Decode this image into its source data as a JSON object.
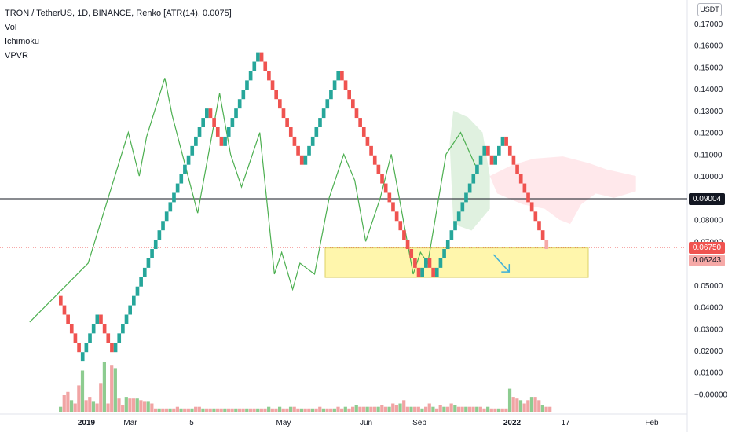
{
  "header": {
    "title": "TRON / TetherUS, 1D, BINANCE, Renko [ATR(14), 0.0075]",
    "indicators": [
      "Vol",
      "Ichimoku",
      "VPVR"
    ],
    "currency": "USDT"
  },
  "colors": {
    "up": "#26a69a",
    "down": "#ef5350",
    "ichimoku_line": "#4caf50",
    "volume_up": "#81c784",
    "volume_down": "#ef9a9a",
    "support_zone": "#fff176",
    "arrow": "#3fb0d8",
    "cloud_bull": "#a5d6a7",
    "cloud_bear": "#ffcdd2"
  },
  "price_labels": {
    "current": "0.09004",
    "close": "0.06750",
    "open": "0.06243"
  },
  "chart_data": {
    "type": "renko",
    "box_size": 0.0075,
    "y_axis_ticks": [
      "0.17000",
      "0.16000",
      "0.15000",
      "0.14000",
      "0.13000",
      "0.12000",
      "0.11000",
      "0.10000",
      "0.09000",
      "0.08000",
      "0.07000",
      "0.06000",
      "0.05000",
      "0.04000",
      "0.03000",
      "0.02000",
      "0.01000",
      "−0.00000"
    ],
    "x_axis_ticks": [
      "2019",
      "Mar",
      "5",
      "May",
      "Jun",
      "Sep",
      "2022",
      "17",
      "Feb"
    ],
    "ylim": [
      -0.002,
      0.175
    ],
    "bricks": [
      [
        "down",
        0.045
      ],
      [
        "down",
        0.0407
      ],
      [
        "down",
        0.0364
      ],
      [
        "down",
        0.0321
      ],
      [
        "down",
        0.0278
      ],
      [
        "down",
        0.0235
      ],
      [
        "up",
        0.0192
      ],
      [
        "up",
        0.0235
      ],
      [
        "up",
        0.0278
      ],
      [
        "up",
        0.0321
      ],
      [
        "up",
        0.0364
      ],
      [
        "down",
        0.0364
      ],
      [
        "down",
        0.0321
      ],
      [
        "down",
        0.0278
      ],
      [
        "down",
        0.0235
      ],
      [
        "up",
        0.0235
      ],
      [
        "up",
        0.0278
      ],
      [
        "up",
        0.0321
      ],
      [
        "up",
        0.0364
      ],
      [
        "up",
        0.0407
      ],
      [
        "up",
        0.045
      ],
      [
        "up",
        0.0493
      ],
      [
        "up",
        0.0536
      ],
      [
        "up",
        0.0579
      ],
      [
        "up",
        0.0622
      ],
      [
        "up",
        0.0665
      ],
      [
        "up",
        0.0708
      ],
      [
        "up",
        0.0751
      ],
      [
        "up",
        0.0794
      ],
      [
        "up",
        0.0837
      ],
      [
        "up",
        0.088
      ],
      [
        "up",
        0.0923
      ],
      [
        "up",
        0.0966
      ],
      [
        "up",
        0.1009
      ],
      [
        "up",
        0.1052
      ],
      [
        "up",
        0.1095
      ],
      [
        "up",
        0.1138
      ],
      [
        "up",
        0.1181
      ],
      [
        "up",
        0.1224
      ],
      [
        "up",
        0.1267
      ],
      [
        "up",
        0.131
      ],
      [
        "down",
        0.131
      ],
      [
        "down",
        0.1267
      ],
      [
        "down",
        0.1224
      ],
      [
        "down",
        0.1181
      ],
      [
        "up",
        0.1181
      ],
      [
        "up",
        0.1224
      ],
      [
        "up",
        0.1267
      ],
      [
        "up",
        0.131
      ],
      [
        "up",
        0.1353
      ],
      [
        "up",
        0.1396
      ],
      [
        "up",
        0.1439
      ],
      [
        "up",
        0.1482
      ],
      [
        "up",
        0.1525
      ],
      [
        "up",
        0.1568
      ],
      [
        "down",
        0.1568
      ],
      [
        "down",
        0.1525
      ],
      [
        "down",
        0.1482
      ],
      [
        "down",
        0.1439
      ],
      [
        "down",
        0.1396
      ],
      [
        "down",
        0.1353
      ],
      [
        "down",
        0.131
      ],
      [
        "down",
        0.1267
      ],
      [
        "down",
        0.1224
      ],
      [
        "down",
        0.1181
      ],
      [
        "down",
        0.1138
      ],
      [
        "down",
        0.1095
      ],
      [
        "up",
        0.1095
      ],
      [
        "up",
        0.1138
      ],
      [
        "up",
        0.1181
      ],
      [
        "up",
        0.1224
      ],
      [
        "up",
        0.1267
      ],
      [
        "up",
        0.131
      ],
      [
        "up",
        0.1353
      ],
      [
        "up",
        0.1396
      ],
      [
        "up",
        0.1439
      ],
      [
        "up",
        0.1482
      ],
      [
        "down",
        0.1482
      ],
      [
        "down",
        0.1439
      ],
      [
        "down",
        0.1396
      ],
      [
        "down",
        0.1353
      ],
      [
        "down",
        0.131
      ],
      [
        "down",
        0.1267
      ],
      [
        "down",
        0.1224
      ],
      [
        "down",
        0.1181
      ],
      [
        "down",
        0.1138
      ],
      [
        "down",
        0.1095
      ],
      [
        "down",
        0.1052
      ],
      [
        "down",
        0.1009
      ],
      [
        "down",
        0.0966
      ],
      [
        "down",
        0.0923
      ],
      [
        "down",
        0.088
      ],
      [
        "down",
        0.0837
      ],
      [
        "down",
        0.0794
      ],
      [
        "down",
        0.0751
      ],
      [
        "down",
        0.0708
      ],
      [
        "down",
        0.0665
      ],
      [
        "down",
        0.0622
      ],
      [
        "down",
        0.0579
      ],
      [
        "up",
        0.0579
      ],
      [
        "up",
        0.0622
      ],
      [
        "down",
        0.0622
      ],
      [
        "down",
        0.0579
      ],
      [
        "up",
        0.0579
      ],
      [
        "up",
        0.0622
      ],
      [
        "up",
        0.0665
      ],
      [
        "up",
        0.0708
      ],
      [
        "up",
        0.0751
      ],
      [
        "up",
        0.0794
      ],
      [
        "up",
        0.0837
      ],
      [
        "up",
        0.088
      ],
      [
        "up",
        0.0923
      ],
      [
        "up",
        0.0966
      ],
      [
        "up",
        0.1009
      ],
      [
        "up",
        0.1052
      ],
      [
        "up",
        0.1095
      ],
      [
        "up",
        0.1138
      ],
      [
        "down",
        0.1138
      ],
      [
        "down",
        0.1095
      ],
      [
        "up",
        0.1095
      ],
      [
        "up",
        0.1138
      ],
      [
        "up",
        0.1181
      ],
      [
        "down",
        0.1181
      ],
      [
        "down",
        0.1138
      ],
      [
        "down",
        0.1095
      ],
      [
        "down",
        0.1052
      ],
      [
        "down",
        0.1009
      ],
      [
        "down",
        0.0966
      ],
      [
        "down",
        0.0923
      ],
      [
        "down",
        0.088
      ],
      [
        "down",
        0.0837
      ],
      [
        "down",
        0.0794
      ],
      [
        "down",
        0.0751
      ],
      [
        "pending",
        0.0708
      ]
    ],
    "ichimoku_line": [
      [
        -8,
        0.033
      ],
      [
        8,
        0.06
      ],
      [
        19,
        0.12
      ],
      [
        22,
        0.1
      ],
      [
        24,
        0.118
      ],
      [
        29,
        0.145
      ],
      [
        31,
        0.128
      ],
      [
        38,
        0.083
      ],
      [
        44,
        0.138
      ],
      [
        47,
        0.11
      ],
      [
        50,
        0.095
      ],
      [
        55,
        0.12
      ],
      [
        59,
        0.055
      ],
      [
        61,
        0.065
      ],
      [
        64,
        0.048
      ],
      [
        66,
        0.06
      ],
      [
        70,
        0.055
      ],
      [
        74,
        0.09
      ],
      [
        78,
        0.11
      ],
      [
        81,
        0.098
      ],
      [
        84,
        0.07
      ],
      [
        88,
        0.09
      ],
      [
        91,
        0.11
      ],
      [
        97,
        0.055
      ],
      [
        99,
        0.065
      ],
      [
        101,
        0.06
      ],
      [
        106,
        0.11
      ],
      [
        110,
        0.12
      ],
      [
        114,
        0.105
      ]
    ],
    "cloud_bull": [
      [
        107,
        0.115
      ],
      [
        108,
        0.13
      ],
      [
        112,
        0.127
      ],
      [
        116,
        0.12
      ],
      [
        118,
        0.1
      ],
      [
        118,
        0.085
      ],
      [
        113,
        0.075
      ],
      [
        108,
        0.078
      ]
    ],
    "cloud_bear": [
      [
        118,
        0.1
      ],
      [
        124,
        0.105
      ],
      [
        130,
        0.108
      ],
      [
        138,
        0.109
      ],
      [
        145,
        0.106
      ],
      [
        150,
        0.103
      ],
      [
        158,
        0.1
      ],
      [
        158,
        0.093
      ],
      [
        152,
        0.09
      ],
      [
        147,
        0.092
      ],
      [
        143,
        0.087
      ],
      [
        140,
        0.078
      ],
      [
        137,
        0.08
      ],
      [
        133,
        0.085
      ],
      [
        127,
        0.087
      ],
      [
        120,
        0.092
      ]
    ],
    "volume": [
      3,
      10,
      12,
      7,
      5,
      16,
      25,
      7,
      9,
      6,
      5,
      17,
      30,
      5,
      28,
      26,
      8,
      4,
      9,
      8,
      8,
      8,
      7,
      6,
      6,
      5,
      2,
      2,
      2,
      2,
      2,
      2,
      3,
      2,
      2,
      2,
      2,
      3,
      3,
      2,
      2,
      2,
      2,
      2,
      2,
      2,
      2,
      2,
      2,
      2,
      2,
      2,
      2,
      2,
      2,
      2,
      2,
      3,
      2,
      2,
      3,
      2,
      2,
      3,
      3,
      2,
      2,
      2,
      2,
      2,
      2,
      3,
      2,
      2,
      2,
      2,
      3,
      2,
      3,
      2,
      3,
      4,
      3,
      3,
      3,
      3,
      3,
      3,
      4,
      3,
      3,
      5,
      4,
      5,
      7,
      3,
      3,
      3,
      3,
      2,
      3,
      5,
      3,
      2,
      4,
      3,
      3,
      5,
      4,
      3,
      3,
      3,
      3,
      3,
      3,
      3,
      2,
      3,
      2,
      2,
      2,
      2,
      2,
      14,
      9,
      8,
      7,
      5,
      7,
      9,
      9,
      7,
      4,
      3,
      3
    ],
    "support_zone": {
      "price_low": 0.0535,
      "price_high": 0.067
    },
    "projection_arrow": {
      "from": [
        119,
        0.064
      ],
      "to": [
        122,
        0.056
      ]
    }
  }
}
